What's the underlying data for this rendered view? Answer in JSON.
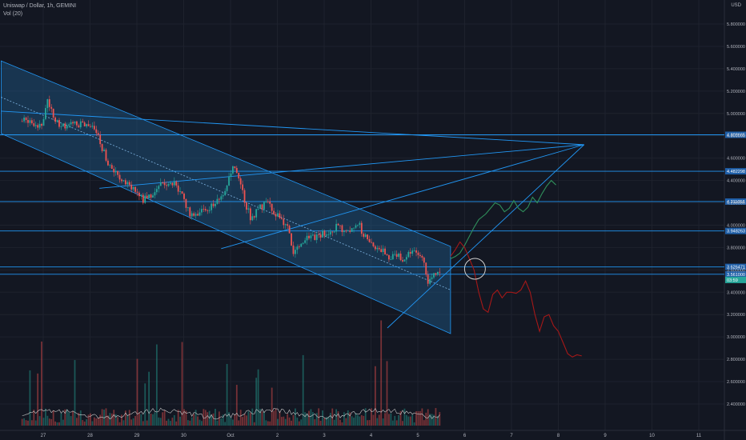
{
  "header": {
    "symbol_line": "Uniswap / Dollar, 1h, GEMINI",
    "volume_line": "Vol (20)",
    "currency": "USD"
  },
  "chart_data": {
    "type": "candlestick",
    "title": "Uniswap / Dollar, 1h, GEMINI",
    "ylim": [
      2.28,
      5.92
    ],
    "y_ticks": [
      "5.800000",
      "5.600000",
      "5.400000",
      "5.200000",
      "5.000000",
      "4.800000",
      "4.600000",
      "4.400000",
      "4.200000",
      "4.000000",
      "3.800000",
      "3.600000",
      "3.400000",
      "3.200000",
      "3.000000",
      "2.800000",
      "2.600000",
      "2.400000"
    ],
    "x_ticks": [
      {
        "label": "27",
        "day": 0
      },
      {
        "label": "28",
        "day": 1
      },
      {
        "label": "29",
        "day": 2
      },
      {
        "label": "30",
        "day": 3
      },
      {
        "label": "Oct",
        "day": 4
      },
      {
        "label": "2",
        "day": 5
      },
      {
        "label": "3",
        "day": 6
      },
      {
        "label": "4",
        "day": 7
      },
      {
        "label": "5",
        "day": 8
      },
      {
        "label": "6",
        "day": 9
      },
      {
        "label": "7",
        "day": 10
      },
      {
        "label": "8",
        "day": 11
      },
      {
        "label": "9",
        "day": 12
      },
      {
        "label": "10",
        "day": 13
      },
      {
        "label": "11",
        "day": 14
      }
    ],
    "horizontal_levels": [
      {
        "value": 4.808665,
        "label": "4.808665"
      },
      {
        "value": 4.482298,
        "label": "4.482298"
      },
      {
        "value": 4.211058,
        "label": "4.211058"
      },
      {
        "value": 3.948263,
        "label": "3.948263"
      },
      {
        "value": 3.626471,
        "label": "3.626471"
      },
      {
        "value": 3.561,
        "label": "3.561000"
      }
    ],
    "last_price_tag": {
      "value": 3.51,
      "label": "03:59"
    },
    "price_path": [
      [
        -0.45,
        4.93
      ],
      [
        -0.3,
        4.95
      ],
      [
        -0.15,
        4.9
      ],
      [
        0,
        4.92
      ],
      [
        0.1,
        5.15
      ],
      [
        0.15,
        5.05
      ],
      [
        0.3,
        4.92
      ],
      [
        0.5,
        4.86
      ],
      [
        0.7,
        4.92
      ],
      [
        0.9,
        4.88
      ],
      [
        1.1,
        4.85
      ],
      [
        1.25,
        4.7
      ],
      [
        1.4,
        4.55
      ],
      [
        1.55,
        4.45
      ],
      [
        1.7,
        4.42
      ],
      [
        1.85,
        4.35
      ],
      [
        2.0,
        4.3
      ],
      [
        2.15,
        4.22
      ],
      [
        2.3,
        4.28
      ],
      [
        2.5,
        4.35
      ],
      [
        2.7,
        4.4
      ],
      [
        2.85,
        4.35
      ],
      [
        3.0,
        4.22
      ],
      [
        3.15,
        4.1
      ],
      [
        3.35,
        4.12
      ],
      [
        3.5,
        4.15
      ],
      [
        3.65,
        4.18
      ],
      [
        3.8,
        4.25
      ],
      [
        3.95,
        4.38
      ],
      [
        4.05,
        4.5
      ],
      [
        4.15,
        4.45
      ],
      [
        4.3,
        4.22
      ],
      [
        4.45,
        4.05
      ],
      [
        4.6,
        4.15
      ],
      [
        4.75,
        4.2
      ],
      [
        4.9,
        4.15
      ],
      [
        5.05,
        4.05
      ],
      [
        5.2,
        4.0
      ],
      [
        5.35,
        3.75
      ],
      [
        5.5,
        3.8
      ],
      [
        5.65,
        3.92
      ],
      [
        5.8,
        3.9
      ],
      [
        5.95,
        3.92
      ],
      [
        6.1,
        3.95
      ],
      [
        6.25,
        3.98
      ],
      [
        6.4,
        3.97
      ],
      [
        6.55,
        3.95
      ],
      [
        6.7,
        4.05
      ],
      [
        6.8,
        3.95
      ],
      [
        6.95,
        3.85
      ],
      [
        7.1,
        3.8
      ],
      [
        7.25,
        3.78
      ],
      [
        7.4,
        3.72
      ],
      [
        7.55,
        3.75
      ],
      [
        7.7,
        3.7
      ],
      [
        7.85,
        3.74
      ],
      [
        8.0,
        3.77
      ],
      [
        8.1,
        3.7
      ],
      [
        8.2,
        3.5
      ],
      [
        8.35,
        3.55
      ],
      [
        8.5,
        3.56
      ]
    ],
    "channel": {
      "upper": [
        [
          -0.9,
          5.47
        ],
        [
          8.7,
          3.81
        ]
      ],
      "lower": [
        [
          -0.9,
          4.82
        ],
        [
          8.7,
          3.03
        ]
      ]
    },
    "drawn_lines": [
      {
        "from": [
          -0.9,
          5.02
        ],
        "to": [
          11.55,
          4.72
        ]
      },
      {
        "from": [
          1.2,
          4.33
        ],
        "to": [
          11.55,
          4.72
        ]
      },
      {
        "from": [
          3.8,
          3.79
        ],
        "to": [
          11.55,
          4.72
        ]
      },
      {
        "from": [
          7.35,
          3.08
        ],
        "to": [
          11.55,
          4.72
        ]
      }
    ],
    "projection_up": [
      [
        8.7,
        3.7
      ],
      [
        8.8,
        3.72
      ],
      [
        8.9,
        3.75
      ],
      [
        9.0,
        3.82
      ],
      [
        9.1,
        3.9
      ],
      [
        9.2,
        3.98
      ],
      [
        9.3,
        4.05
      ],
      [
        9.45,
        4.1
      ],
      [
        9.55,
        4.15
      ],
      [
        9.65,
        4.2
      ],
      [
        9.75,
        4.18
      ],
      [
        9.85,
        4.12
      ],
      [
        9.95,
        4.15
      ],
      [
        10.05,
        4.22
      ],
      [
        10.15,
        4.15
      ],
      [
        10.25,
        4.12
      ],
      [
        10.35,
        4.16
      ],
      [
        10.45,
        4.25
      ],
      [
        10.55,
        4.2
      ],
      [
        10.65,
        4.28
      ],
      [
        10.75,
        4.35
      ],
      [
        10.85,
        4.4
      ],
      [
        10.95,
        4.36
      ]
    ],
    "projection_down": [
      [
        8.7,
        3.72
      ],
      [
        8.8,
        3.78
      ],
      [
        8.9,
        3.85
      ],
      [
        9.0,
        3.8
      ],
      [
        9.1,
        3.7
      ],
      [
        9.2,
        3.6
      ],
      [
        9.3,
        3.4
      ],
      [
        9.4,
        3.25
      ],
      [
        9.5,
        3.22
      ],
      [
        9.6,
        3.38
      ],
      [
        9.7,
        3.42
      ],
      [
        9.8,
        3.35
      ],
      [
        9.9,
        3.4
      ],
      [
        10.0,
        3.4
      ],
      [
        10.1,
        3.39
      ],
      [
        10.2,
        3.42
      ],
      [
        10.3,
        3.5
      ],
      [
        10.4,
        3.4
      ],
      [
        10.5,
        3.2
      ],
      [
        10.6,
        3.05
      ],
      [
        10.7,
        3.18
      ],
      [
        10.8,
        3.2
      ],
      [
        10.9,
        3.1
      ],
      [
        11.0,
        3.05
      ],
      [
        11.1,
        2.95
      ],
      [
        11.2,
        2.85
      ],
      [
        11.3,
        2.82
      ],
      [
        11.4,
        2.84
      ],
      [
        11.5,
        2.83
      ]
    ],
    "circle_marker": {
      "x": 9.22,
      "y": 3.61
    },
    "colors": {
      "background": "#131722",
      "up_candle": "#26a69a",
      "down_candle": "#ef5350",
      "levels": "#2196f3",
      "channel_fill": "#1e5a8a",
      "projection_up": "#2f8f5b",
      "projection_down": "#a51818",
      "volume_ma": "#c9c9c9"
    }
  }
}
